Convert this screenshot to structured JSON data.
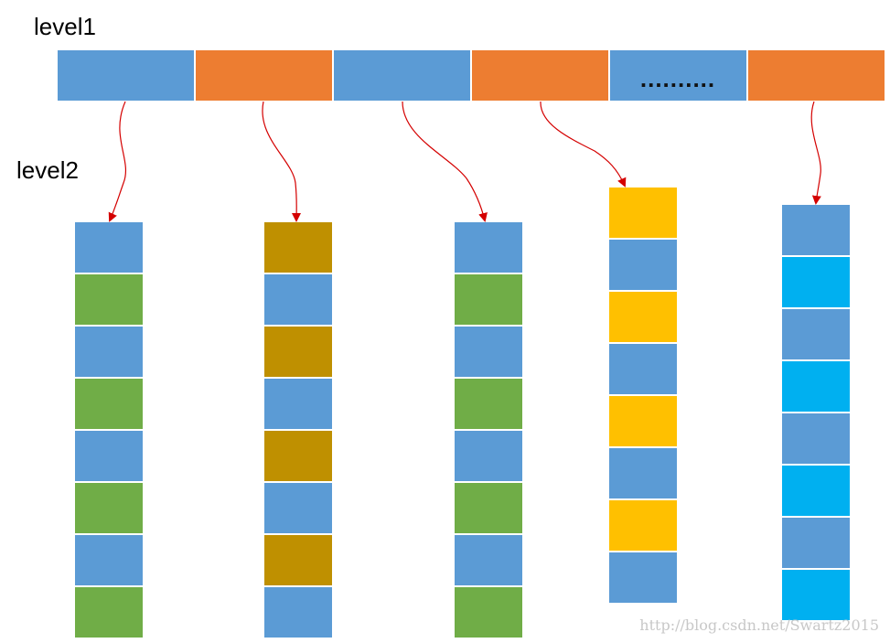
{
  "labels": {
    "level1": "level1",
    "level2": "level2"
  },
  "level1": {
    "ellipsis_text": "..........",
    "cells": [
      {
        "color": "#5b9bd5",
        "text": ""
      },
      {
        "color": "#ed7d31",
        "text": ""
      },
      {
        "color": "#5b9bd5",
        "text": ""
      },
      {
        "color": "#ed7d31",
        "text": ""
      },
      {
        "color": "#5b9bd5",
        "text": ".........."
      },
      {
        "color": "#ed7d31",
        "text": ""
      }
    ]
  },
  "level2": {
    "columns": [
      {
        "colors": [
          "#5b9bd5",
          "#70ad47",
          "#5b9bd5",
          "#70ad47",
          "#5b9bd5",
          "#70ad47",
          "#5b9bd5",
          "#70ad47"
        ]
      },
      {
        "colors": [
          "#bf9000",
          "#5b9bd5",
          "#bf9000",
          "#5b9bd5",
          "#bf9000",
          "#5b9bd5",
          "#bf9000",
          "#5b9bd5"
        ]
      },
      {
        "colors": [
          "#5b9bd5",
          "#70ad47",
          "#5b9bd5",
          "#70ad47",
          "#5b9bd5",
          "#70ad47",
          "#5b9bd5",
          "#70ad47"
        ]
      },
      {
        "colors": [
          "#ffc000",
          "#5b9bd5",
          "#ffc000",
          "#5b9bd5",
          "#ffc000",
          "#5b9bd5",
          "#ffc000",
          "#5b9bd5"
        ]
      },
      {
        "colors": [
          "#5b9bd5",
          "#00b0f0",
          "#5b9bd5",
          "#00b0f0",
          "#5b9bd5",
          "#00b0f0",
          "#5b9bd5",
          "#00b0f0"
        ]
      }
    ]
  },
  "arrow_color": "#d40000",
  "watermark": "http://blog.csdn.net/Swartz2015"
}
